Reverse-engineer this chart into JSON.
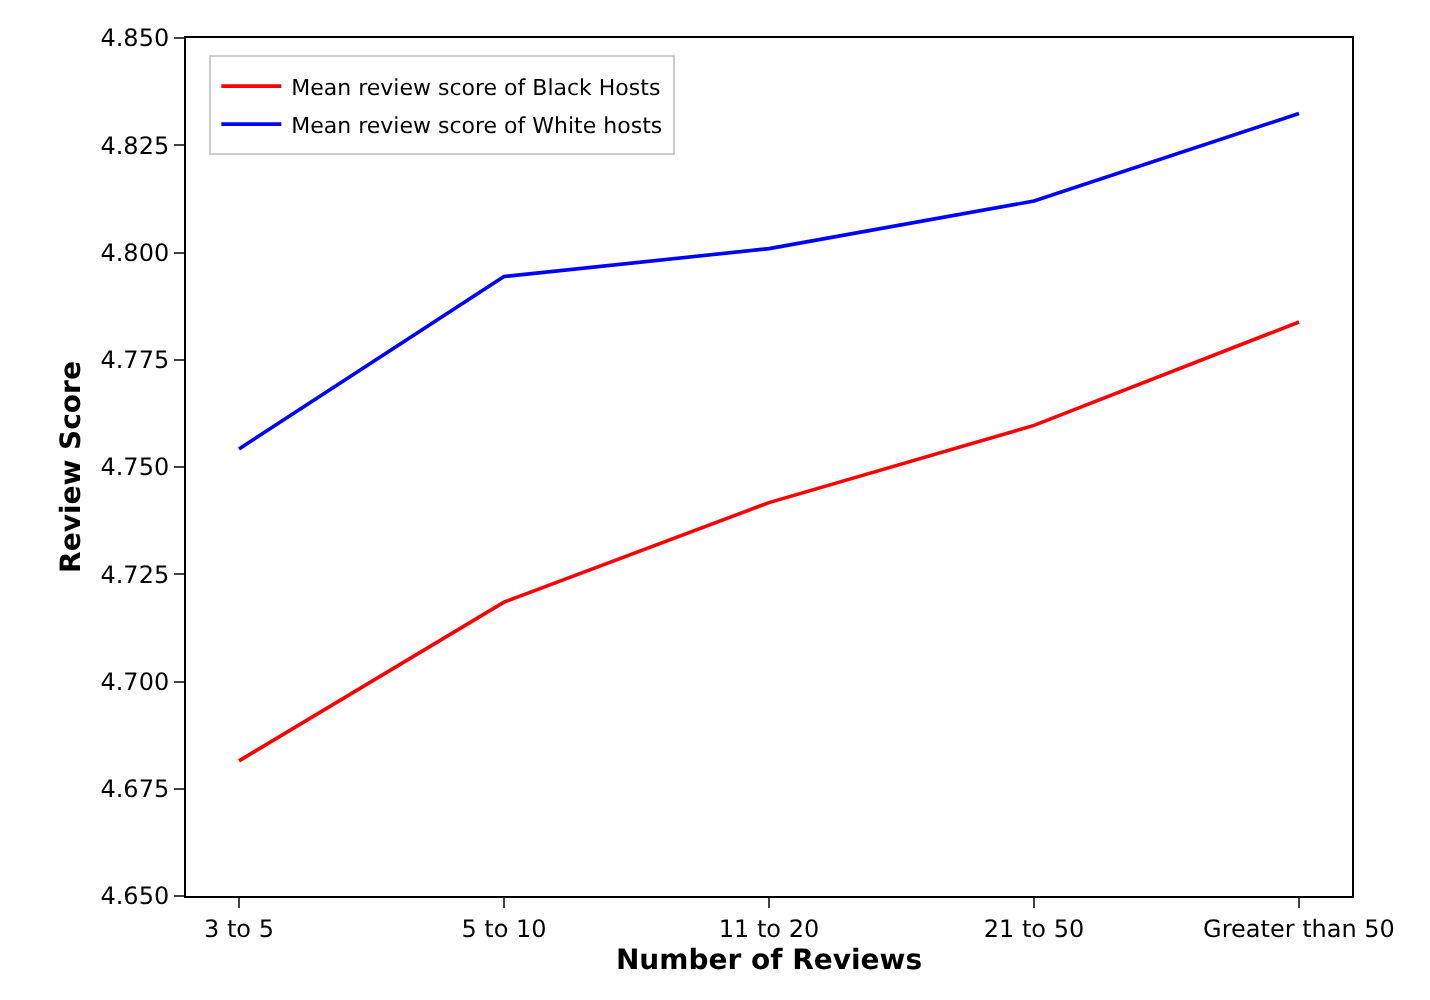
{
  "chart_data": {
    "type": "line",
    "xlabel": "Number of Reviews",
    "ylabel": "Review Score",
    "categories": [
      "3 to 5",
      "5 to 10",
      "11 to 20",
      "21 to 50",
      "Greater than 50"
    ],
    "series": [
      {
        "name": "Mean review score of Black Hosts",
        "color": "#ff0000",
        "values": [
          4.6815,
          4.7185,
          4.7417,
          4.7597,
          4.7838
        ]
      },
      {
        "name": "Mean review score of White hosts",
        "color": "#0000ff",
        "values": [
          4.7542,
          4.7944,
          4.8009,
          4.812,
          4.8324
        ]
      }
    ],
    "ylim": [
      4.65,
      4.85
    ],
    "yticks": [
      {
        "value": 4.65,
        "label": "4.650"
      },
      {
        "value": 4.675,
        "label": "4.675"
      },
      {
        "value": 4.7,
        "label": "4.700"
      },
      {
        "value": 4.725,
        "label": "4.725"
      },
      {
        "value": 4.75,
        "label": "4.750"
      },
      {
        "value": 4.775,
        "label": "4.775"
      },
      {
        "value": 4.8,
        "label": "4.800"
      },
      {
        "value": 4.825,
        "label": "4.825"
      },
      {
        "value": 4.85,
        "label": "4.850"
      }
    ],
    "legend": "top left",
    "marker": "none",
    "line_style": "solid"
  }
}
